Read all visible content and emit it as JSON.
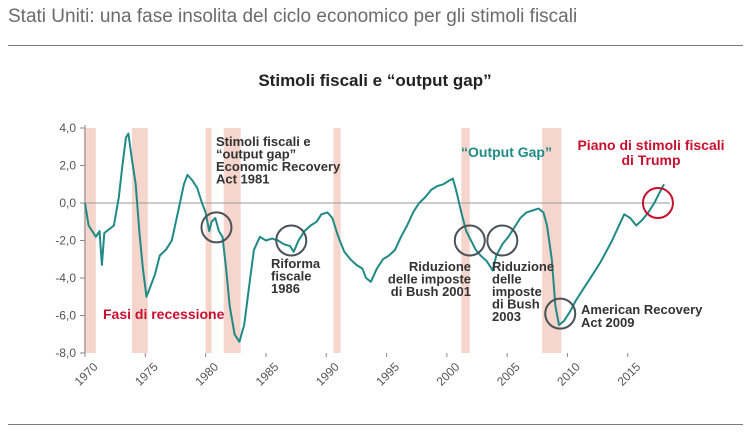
{
  "header": {
    "title": "Stati Uniti: una fase insolita del ciclo economico per gli stimoli fiscali"
  },
  "colors": {
    "line": "#1f8a86",
    "recession": "#f5d5cc",
    "annotation_red": "#c8102e",
    "circle": "#4a5258",
    "text": "#333333",
    "axis": "#8a8a8a"
  },
  "chart_data": {
    "type": "line",
    "title": "Stimoli fiscali e “output gap”",
    "xlabel": "",
    "ylabel": "",
    "xlim": [
      1970,
      2018.5
    ],
    "ylim": [
      -8,
      4
    ],
    "grid": false,
    "x_ticks": [
      "1970",
      "1975",
      "1980",
      "1985",
      "1990",
      "1995",
      "2000",
      "2005",
      "2010",
      "2015"
    ],
    "y_ticks": [
      "4,0",
      "2,0",
      "0,0",
      "-2,0",
      "-4,0",
      "-6,0",
      "-8,0"
    ],
    "recession_periods": [
      [
        1969.9,
        1970.9
      ],
      [
        1973.9,
        1975.2
      ],
      [
        1980.0,
        1980.5
      ],
      [
        1981.5,
        1982.9
      ],
      [
        1990.6,
        1991.2
      ],
      [
        2001.2,
        2001.9
      ],
      [
        2007.9,
        2009.5
      ]
    ],
    "series": [
      {
        "name": "Output Gap",
        "points": [
          [
            1970.0,
            0.0
          ],
          [
            1970.3,
            -1.2
          ],
          [
            1970.6,
            -1.5
          ],
          [
            1970.9,
            -1.8
          ],
          [
            1971.2,
            -1.5
          ],
          [
            1971.4,
            -3.3
          ],
          [
            1971.6,
            -1.6
          ],
          [
            1972.0,
            -1.4
          ],
          [
            1972.4,
            -1.2
          ],
          [
            1972.8,
            0.3
          ],
          [
            1973.1,
            2.0
          ],
          [
            1973.4,
            3.5
          ],
          [
            1973.6,
            3.7
          ],
          [
            1973.9,
            2.3
          ],
          [
            1974.2,
            1.0
          ],
          [
            1974.5,
            -1.5
          ],
          [
            1974.8,
            -3.5
          ],
          [
            1975.1,
            -5.0
          ],
          [
            1975.4,
            -4.5
          ],
          [
            1975.8,
            -3.8
          ],
          [
            1976.2,
            -2.8
          ],
          [
            1976.7,
            -2.5
          ],
          [
            1977.2,
            -2.0
          ],
          [
            1977.7,
            -0.5
          ],
          [
            1978.2,
            1.0
          ],
          [
            1978.5,
            1.5
          ],
          [
            1978.9,
            1.2
          ],
          [
            1979.3,
            0.8
          ],
          [
            1979.7,
            0.0
          ],
          [
            1980.0,
            -0.5
          ],
          [
            1980.3,
            -1.5
          ],
          [
            1980.5,
            -1.0
          ],
          [
            1980.8,
            -0.8
          ],
          [
            1981.1,
            -1.5
          ],
          [
            1981.4,
            -1.8
          ],
          [
            1981.7,
            -3.5
          ],
          [
            1982.0,
            -5.5
          ],
          [
            1982.4,
            -7.0
          ],
          [
            1982.8,
            -7.4
          ],
          [
            1983.2,
            -6.5
          ],
          [
            1983.6,
            -4.5
          ],
          [
            1984.0,
            -2.5
          ],
          [
            1984.5,
            -1.8
          ],
          [
            1985.0,
            -2.0
          ],
          [
            1985.5,
            -1.9
          ],
          [
            1986.0,
            -2.0
          ],
          [
            1986.5,
            -2.2
          ],
          [
            1987.0,
            -2.3
          ],
          [
            1987.3,
            -2.6
          ],
          [
            1987.7,
            -2.0
          ],
          [
            1988.2,
            -1.5
          ],
          [
            1988.7,
            -1.2
          ],
          [
            1989.2,
            -1.0
          ],
          [
            1989.6,
            -0.6
          ],
          [
            1990.1,
            -0.5
          ],
          [
            1990.5,
            -0.8
          ],
          [
            1991.0,
            -1.8
          ],
          [
            1991.5,
            -2.6
          ],
          [
            1992.0,
            -3.0
          ],
          [
            1992.5,
            -3.3
          ],
          [
            1993.0,
            -3.5
          ],
          [
            1993.3,
            -4.0
          ],
          [
            1993.7,
            -4.2
          ],
          [
            1994.2,
            -3.5
          ],
          [
            1994.7,
            -3.0
          ],
          [
            1995.2,
            -2.8
          ],
          [
            1995.7,
            -2.5
          ],
          [
            1996.2,
            -1.8
          ],
          [
            1996.7,
            -1.2
          ],
          [
            1997.2,
            -0.5
          ],
          [
            1997.7,
            0.0
          ],
          [
            1998.2,
            0.3
          ],
          [
            1998.7,
            0.7
          ],
          [
            1999.2,
            0.9
          ],
          [
            1999.7,
            1.0
          ],
          [
            2000.2,
            1.2
          ],
          [
            2000.5,
            1.3
          ],
          [
            2000.8,
            0.6
          ],
          [
            2001.2,
            -0.5
          ],
          [
            2001.6,
            -1.5
          ],
          [
            2002.0,
            -2.0
          ],
          [
            2002.4,
            -2.5
          ],
          [
            2002.8,
            -2.8
          ],
          [
            2003.3,
            -3.1
          ],
          [
            2003.8,
            -3.6
          ],
          [
            2004.1,
            -2.8
          ],
          [
            2004.6,
            -2.2
          ],
          [
            2005.1,
            -1.8
          ],
          [
            2005.6,
            -1.3
          ],
          [
            2006.1,
            -0.8
          ],
          [
            2006.6,
            -0.5
          ],
          [
            2007.1,
            -0.4
          ],
          [
            2007.6,
            -0.3
          ],
          [
            2008.0,
            -0.5
          ],
          [
            2008.3,
            -1.2
          ],
          [
            2008.7,
            -3.0
          ],
          [
            2009.0,
            -5.5
          ],
          [
            2009.3,
            -6.5
          ],
          [
            2009.7,
            -6.3
          ],
          [
            2010.2,
            -5.8
          ],
          [
            2010.7,
            -5.2
          ],
          [
            2011.2,
            -4.7
          ],
          [
            2011.7,
            -4.2
          ],
          [
            2012.2,
            -3.7
          ],
          [
            2012.7,
            -3.2
          ],
          [
            2013.2,
            -2.6
          ],
          [
            2013.7,
            -2.0
          ],
          [
            2014.2,
            -1.3
          ],
          [
            2014.7,
            -0.6
          ],
          [
            2015.2,
            -0.8
          ],
          [
            2015.7,
            -1.2
          ],
          [
            2016.2,
            -0.9
          ],
          [
            2016.7,
            -0.5
          ],
          [
            2017.2,
            0.0
          ],
          [
            2017.6,
            0.5
          ],
          [
            2018.0,
            1.0
          ]
        ]
      }
    ],
    "annotations": [
      {
        "id": "stimoli-1981",
        "lines": [
          "Stimoli fiscali e",
          "“output gap”",
          "Economic Recovery",
          "Act 1981"
        ],
        "color": "#333333"
      },
      {
        "id": "riforma-1986",
        "lines": [
          "Riforma",
          "fiscale",
          "1986"
        ],
        "color": "#333333"
      },
      {
        "id": "bush-2001",
        "lines": [
          "Riduzione",
          "delle imposte",
          "di Bush 2001"
        ],
        "color": "#333333"
      },
      {
        "id": "bush-2003",
        "lines": [
          "Riduzione",
          "delle",
          "imposte",
          "di Bush",
          "2003"
        ],
        "color": "#333333"
      },
      {
        "id": "arra-2009",
        "lines": [
          "American Recovery",
          "Act 2009"
        ],
        "color": "#333333"
      },
      {
        "id": "trump",
        "lines": [
          "Piano di stimoli fiscali",
          "di Trump"
        ],
        "color": "#c8102e"
      },
      {
        "id": "recession-label",
        "lines": [
          "Fasi di recessione"
        ],
        "color": "#c8102e"
      },
      {
        "id": "output-gap-label",
        "lines": [
          "“Output Gap”"
        ],
        "color": "#1f8a86"
      }
    ]
  }
}
